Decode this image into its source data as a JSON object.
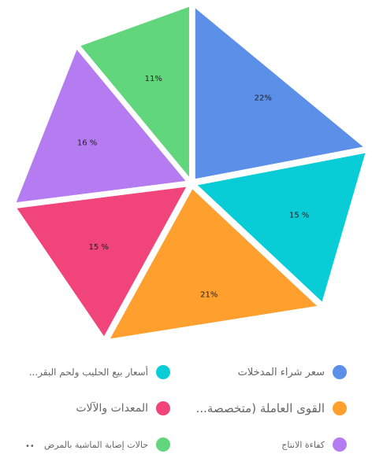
{
  "chart_data": {
    "type": "pie",
    "slices": [
      {
        "label": "سعر شراء المدخلات",
        "label_display": "سعر شراء المدخلات",
        "value": 22,
        "display": "22%",
        "color": "#5b8fe8"
      },
      {
        "label": "أسعار بيع الحليب ولحم البقر",
        "label_display": "أسعار بيع الحليب ولحم البقر...",
        "value": 15,
        "display": "15 %",
        "color": "#09cdd6"
      },
      {
        "label": "القوى العاملة (متخصصة",
        "label_display": "القوى العاملة (متخصصة...",
        "value": 21,
        "display": "21%",
        "color": "#ff9f2e"
      },
      {
        "label": "المعدات والآلات",
        "label_display": "المعدات والآلات",
        "value": 15,
        "display": "15 %",
        "color": "#f0447a"
      },
      {
        "label": "كفاءة الانتاج",
        "label_display": "كفاءة الانتاج",
        "value": 16,
        "display": "16 %",
        "color": "#b57cf2"
      },
      {
        "label": "حالات إصابة الماشية بالمرض",
        "label_display": "حالات إصابة الماشية بالمرض",
        "value": 11,
        "display": "11%",
        "color": "#62d67c"
      }
    ]
  },
  "legend": {
    "more_indicator": "••"
  }
}
